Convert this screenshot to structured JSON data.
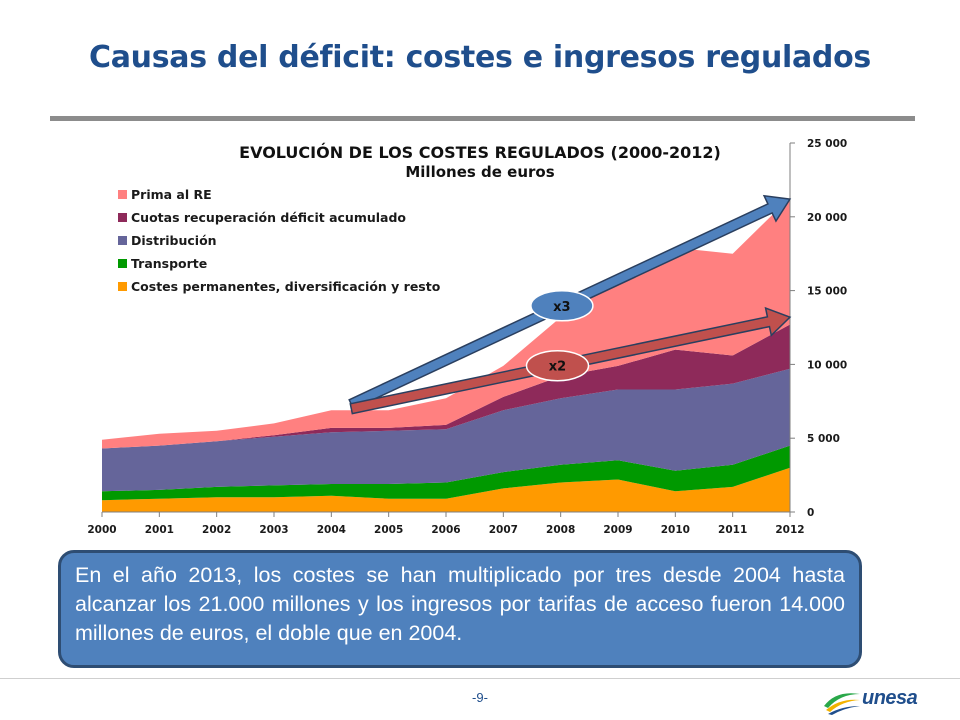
{
  "slide": {
    "title": "Causas del déficit: costes e ingresos regulados",
    "callout_text": "En el año 2013, los costes se han multiplicado por tres desde 2004 hasta alcanzar los 21.000 millones y los ingresos por tarifas de acceso fueron 14.000 millones de euros, el doble que en 2004.",
    "page_number": "-9-",
    "logo_text": "unesa"
  },
  "chart_data": {
    "type": "area",
    "stacked": true,
    "title": "EVOLUCIÓN DE LOS COSTES REGULADOS (2000-2012)",
    "subtitle": "Millones de euros",
    "x": [
      2000,
      2001,
      2002,
      2003,
      2004,
      2005,
      2006,
      2007,
      2008,
      2009,
      2010,
      2011,
      2012
    ],
    "ylim": [
      0,
      25000
    ],
    "y_ticks": [
      0,
      5000,
      10000,
      15000,
      20000,
      25000
    ],
    "y_tick_labels": [
      "0",
      "5 000",
      "10 000",
      "15 000",
      "20 000",
      "25 000"
    ],
    "y_axis_side": "right",
    "legend_position": "top-left",
    "series": [
      {
        "name": "Costes permanentes, diversificación y resto",
        "color": "#ff9a00",
        "values": [
          800,
          900,
          1000,
          1000,
          1100,
          900,
          900,
          1600,
          2000,
          2200,
          1400,
          1700,
          3000
        ]
      },
      {
        "name": "Transporte",
        "color": "#009900",
        "values": [
          600,
          600,
          700,
          800,
          800,
          1000,
          1100,
          1100,
          1200,
          1300,
          1400,
          1500,
          1500
        ]
      },
      {
        "name": "Distribución",
        "color": "#65659a",
        "values": [
          2900,
          3000,
          3100,
          3300,
          3500,
          3600,
          3600,
          4200,
          4500,
          4800,
          5500,
          5500,
          5200
        ]
      },
      {
        "name": "Cuotas recuperación déficit acumulado",
        "color": "#8e2a5a",
        "values": [
          0,
          0,
          0,
          100,
          300,
          200,
          300,
          900,
          1500,
          1600,
          2700,
          1900,
          3000
        ]
      },
      {
        "name": "Prima al RE",
        "color": "#ff8080",
        "values": [
          600,
          800,
          700,
          800,
          1200,
          1200,
          1800,
          2100,
          4000,
          5800,
          6900,
          6900,
          8600
        ]
      }
    ],
    "annotations": [
      {
        "label": "x3",
        "color": "#4f81bd",
        "from": {
          "x": 2004,
          "y": 7300
        },
        "to": {
          "x": 2012,
          "y": 21200
        }
      },
      {
        "label": "x2",
        "color": "#c0504d",
        "from": {
          "x": 2004,
          "y": 7000
        },
        "to": {
          "x": 2012,
          "y": 13200
        }
      }
    ]
  }
}
